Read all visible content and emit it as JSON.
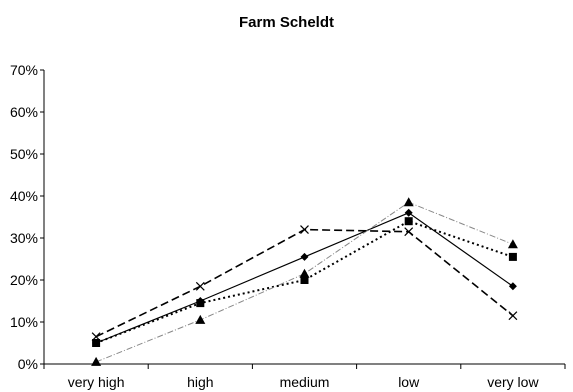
{
  "chart_data": {
    "type": "line",
    "title": "Farm Scheldt",
    "xlabel": "",
    "ylabel": "",
    "categories": [
      "very high",
      "high",
      "medium",
      "low",
      "very low"
    ],
    "yticks": [
      "0%",
      "10%",
      "20%",
      "30%",
      "40%",
      "50%",
      "60%",
      "70%"
    ],
    "ylim": [
      0,
      70
    ],
    "grid": false,
    "legend": "none",
    "series": [
      {
        "values": [
          5,
          15,
          25.5,
          36,
          18.5
        ],
        "line": "solid",
        "marker": "diamond",
        "color": "#000000"
      },
      {
        "values": [
          5,
          14.5,
          20,
          34,
          25.5
        ],
        "line": "dotted",
        "marker": "square",
        "color": "#000000"
      },
      {
        "values": [
          0.5,
          10.5,
          21.5,
          38.5,
          28.5
        ],
        "line": "dash-dot-gray",
        "marker": "triangle",
        "color": "#888888"
      },
      {
        "values": [
          6.5,
          18.5,
          32,
          31.5,
          11.5
        ],
        "line": "dashed",
        "marker": "x",
        "color": "#000000"
      }
    ]
  }
}
